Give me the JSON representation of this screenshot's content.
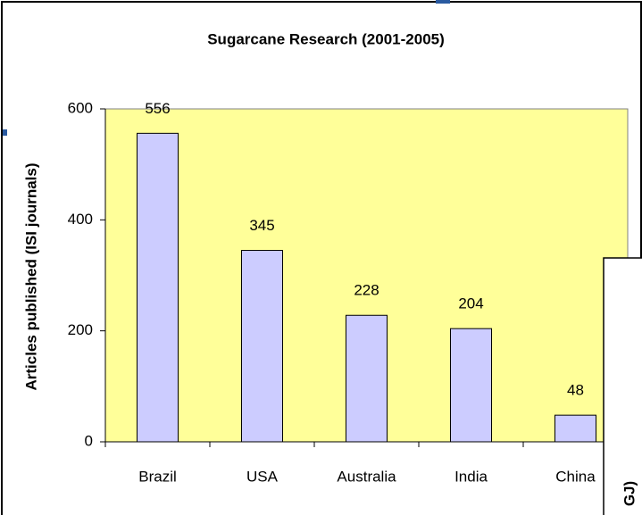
{
  "chart_data": {
    "type": "bar",
    "title": "Sugarcane Research (2001-2005)",
    "y_label": "Articles published (ISI journals)",
    "categories": [
      "Brazil",
      "USA",
      "Australia",
      "India",
      "China"
    ],
    "values": [
      556,
      345,
      228,
      204,
      48
    ],
    "color": "#ccccff",
    "plot_background": "#ffff99",
    "ylim": [
      0,
      600
    ],
    "yticks": [
      0,
      200,
      400,
      600
    ]
  },
  "overlay": {
    "text": "GJ)"
  }
}
